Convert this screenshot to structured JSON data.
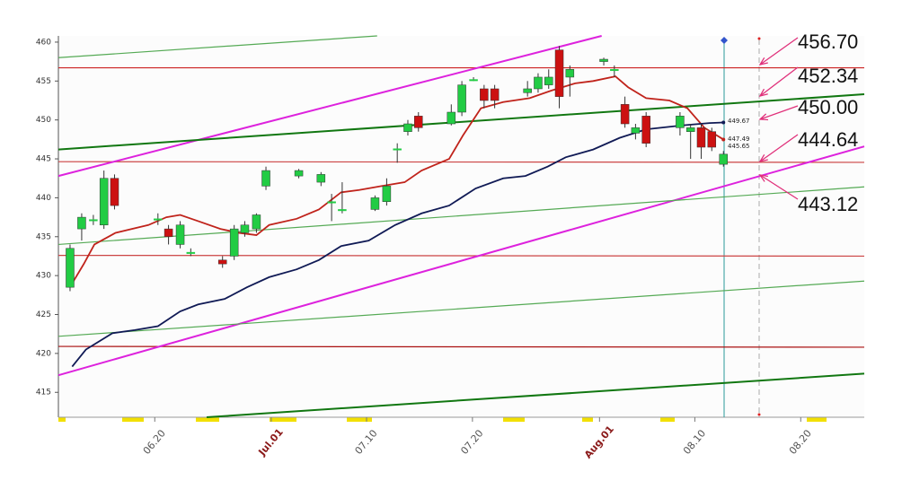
{
  "chart_data": {
    "type": "candlestick",
    "x": [
      12.0,
      13.1,
      14.2,
      15.2,
      16.2,
      20.3,
      21.3,
      22.4,
      23.4,
      26.4,
      27.5,
      28.5,
      29.6,
      30.5,
      33.6,
      35.7,
      36.7,
      37.7,
      40.8,
      41.9,
      42.9,
      43.9,
      44.9,
      48.0,
      49.0,
      50.1,
      51.1,
      52.1,
      55.2,
      56.2,
      57.2,
      58.2,
      59.2,
      62.4,
      63.4,
      64.4,
      65.4,
      66.4,
      69.6,
      70.6,
      71.6,
      72.6,
      73.7
    ],
    "open": [
      428.5,
      436.0,
      437.2,
      436.5,
      442.5,
      437.3,
      436.0,
      434.0,
      433.0,
      432.0,
      432.5,
      435.5,
      436.0,
      441.5,
      442.8,
      442.0,
      439.5,
      438.5,
      438.5,
      439.5,
      446.3,
      448.5,
      450.5,
      449.5,
      451.0,
      455.2,
      454.0,
      454.0,
      453.5,
      454.0,
      454.5,
      459.0,
      455.5,
      457.5,
      456.5,
      452.0,
      448.3,
      450.5,
      449.0,
      448.5,
      449.0,
      448.5,
      444.3
    ],
    "close": [
      433.5,
      437.5,
      437.2,
      442.5,
      439.0,
      437.3,
      435.0,
      436.5,
      433.0,
      431.5,
      436.0,
      436.5,
      437.8,
      443.5,
      443.5,
      443.0,
      439.5,
      438.5,
      440.0,
      441.5,
      446.3,
      449.5,
      449.0,
      451.0,
      454.5,
      455.2,
      452.5,
      452.5,
      454.0,
      455.5,
      455.5,
      453.0,
      456.5,
      457.8,
      456.5,
      449.5,
      449.0,
      447.0,
      450.5,
      449.0,
      446.5,
      446.5,
      445.6
    ],
    "high": [
      434.0,
      438.0,
      437.8,
      443.5,
      443.0,
      438.0,
      436.5,
      437.0,
      433.5,
      432.5,
      436.5,
      437.0,
      438.0,
      444.0,
      443.7,
      443.3,
      440.5,
      442.0,
      440.3,
      442.5,
      447.0,
      450.0,
      451.0,
      452.0,
      455.0,
      455.5,
      454.5,
      454.5,
      455.0,
      456.0,
      456.5,
      459.5,
      457.0,
      458.0,
      457.0,
      453.0,
      449.5,
      451.0,
      451.0,
      449.5,
      449.5,
      449.0,
      446.0
    ],
    "low": [
      428.0,
      434.5,
      436.5,
      436.0,
      438.5,
      436.5,
      434.0,
      433.5,
      432.5,
      431.0,
      432.0,
      435.0,
      435.5,
      441.0,
      442.5,
      441.5,
      437.0,
      438.0,
      438.3,
      439.0,
      444.5,
      448.0,
      448.5,
      449.3,
      450.5,
      455.0,
      451.5,
      451.5,
      453.0,
      453.5,
      454.0,
      451.5,
      453.0,
      457.0,
      455.5,
      449.0,
      447.5,
      446.5,
      448.0,
      445.0,
      445.0,
      446.0,
      444.0
    ],
    "up_color": "#22cc44",
    "down_color": "#cc1111",
    "series": [
      {
        "color": "#c0231b",
        "x": [
          12.2,
          13.3,
          14.3,
          16.3,
          19.4,
          21.1,
          22.4,
          24.1,
          26.2,
          27.9,
          29.6,
          30.8,
          33.4,
          35.5,
          37.6,
          39.3,
          41.4,
          43.6,
          45.2,
          47.8,
          49.1,
          50.8,
          52.9,
          55.4,
          57.5,
          59.7,
          61.4,
          63.5,
          64.7,
          66.4,
          68.6,
          70.3,
          71.9,
          73.7
        ],
        "values": [
          429.0,
          431.5,
          434.0,
          435.5,
          436.5,
          437.5,
          437.8,
          437.0,
          436.0,
          435.5,
          435.2,
          436.5,
          437.3,
          438.5,
          440.7,
          441.0,
          441.5,
          442.0,
          443.5,
          445.0,
          448.0,
          451.5,
          452.3,
          452.8,
          453.8,
          454.7,
          455.0,
          455.6,
          454.2,
          452.8,
          452.5,
          451.5,
          449.0,
          447.49
        ]
      },
      {
        "color": "#101a55",
        "x": [
          12.2,
          13.5,
          16.0,
          18.1,
          20.3,
          22.4,
          24.1,
          26.6,
          28.7,
          30.8,
          33.4,
          35.5,
          37.6,
          40.2,
          42.7,
          45.2,
          47.8,
          50.3,
          52.9,
          55.0,
          57.1,
          58.8,
          61.4,
          63.9,
          66.4,
          69.8,
          72.4,
          73.7
        ],
        "values": [
          418.3,
          420.5,
          422.6,
          423.0,
          423.5,
          425.4,
          426.3,
          427.0,
          428.5,
          429.8,
          430.8,
          432.0,
          433.8,
          434.5,
          436.5,
          438.0,
          439.0,
          441.2,
          442.5,
          442.8,
          444.0,
          445.2,
          446.2,
          447.7,
          448.8,
          449.3,
          449.6,
          449.67
        ]
      }
    ],
    "trend_lines": [
      {
        "color": "#cc2222",
        "x": [
          10.9,
          87.0
        ],
        "y": [
          456.7,
          456.7
        ]
      },
      {
        "color": "#cc4444",
        "x": [
          10.9,
          87.0
        ],
        "y": [
          444.64,
          444.55
        ]
      },
      {
        "color": "#cc4444",
        "x": [
          10.9,
          87.0
        ],
        "y": [
          432.6,
          432.5
        ]
      },
      {
        "color": "#aa1111",
        "x": [
          10.9,
          87.0
        ],
        "y": [
          420.9,
          420.8
        ]
      },
      {
        "color": "#dd22dd",
        "x": [
          10.9,
          62.2
        ],
        "y": [
          442.8,
          460.8
        ]
      },
      {
        "color": "#dd22dd",
        "x": [
          10.9,
          87.0
        ],
        "y": [
          417.2,
          446.6
        ]
      },
      {
        "color": "#117711",
        "x": [
          10.9,
          87.0
        ],
        "y": [
          446.2,
          453.3
        ]
      },
      {
        "color": "#55aa55",
        "x": [
          10.9,
          41.0
        ],
        "y": [
          458.0,
          460.8
        ]
      },
      {
        "color": "#55aa55",
        "x": [
          10.9,
          87.0
        ],
        "y": [
          434.0,
          441.4
        ]
      },
      {
        "color": "#55aa55",
        "x": [
          10.9,
          87.0
        ],
        "y": [
          422.2,
          429.3
        ]
      },
      {
        "color": "#117711",
        "x": [
          24.9,
          87.0
        ],
        "y": [
          411.8,
          417.4
        ]
      }
    ],
    "value_labels": [
      "449.67",
      "447.49",
      "445.65"
    ],
    "annotations": [
      "456.70",
      "452.34",
      "450.00",
      "444.64",
      "443.12"
    ],
    "xlim": [
      10.9,
      87.0
    ],
    "ylim": [
      411.8,
      460.8
    ],
    "yticks": [
      415,
      420,
      425,
      430,
      435,
      440,
      445,
      450,
      455,
      460
    ],
    "xticks": [
      {
        "value": 20,
        "label": "06.20"
      },
      {
        "value": 31,
        "label": "Jul.01"
      },
      {
        "value": 40,
        "label": "07.10"
      },
      {
        "value": 50,
        "label": "07.20"
      },
      {
        "value": 62,
        "label": "Aug.01"
      },
      {
        "value": 71,
        "label": "08.10"
      },
      {
        "value": 81,
        "label": "08.20"
      }
    ]
  }
}
